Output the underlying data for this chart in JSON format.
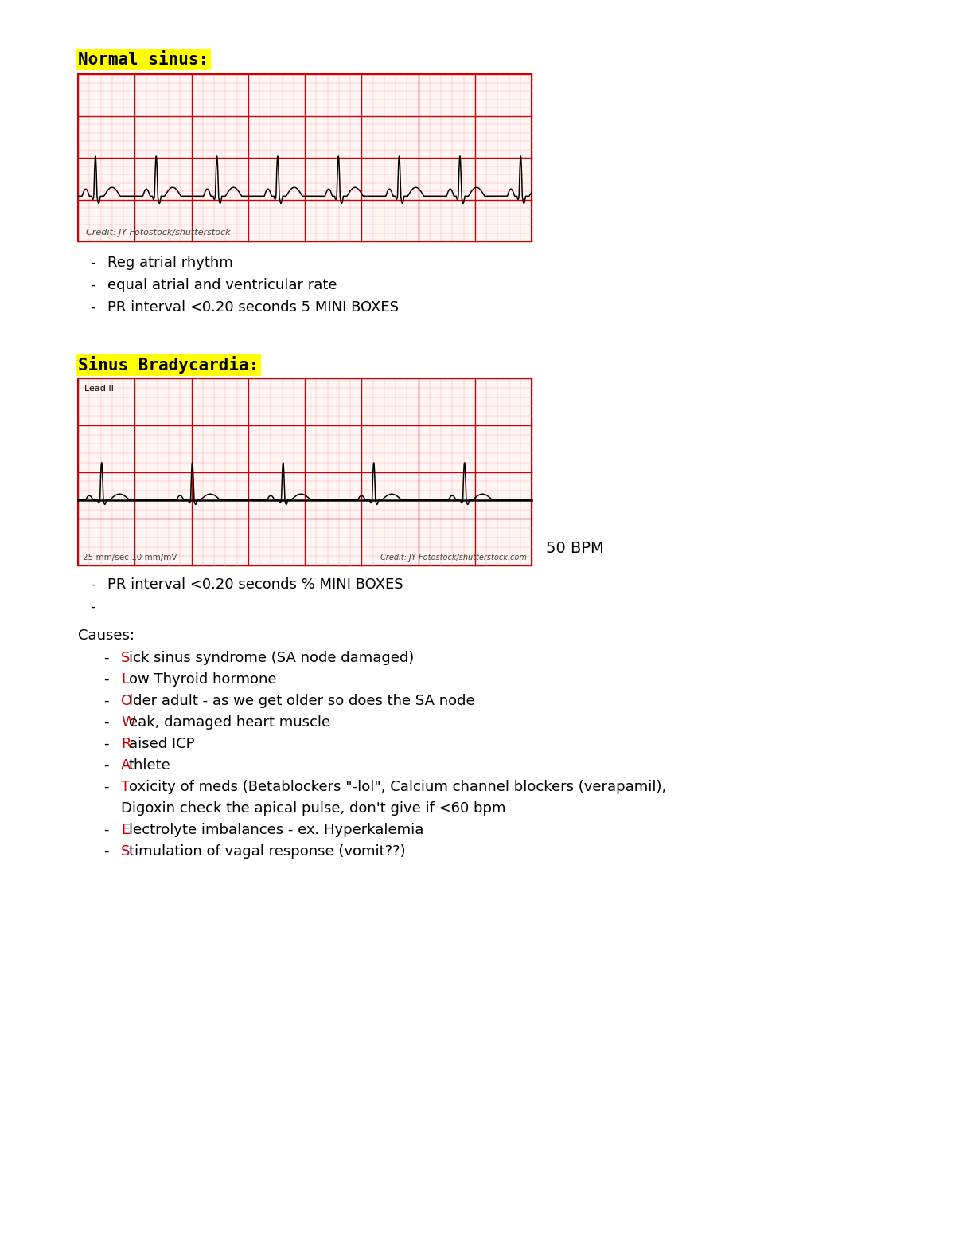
{
  "title": "Normal sinus:",
  "title2": "Sinus Bradycardia:",
  "title_bg": "#ffff00",
  "title_color": "#000000",
  "title_fontsize": 15,
  "body_fontsize": 13,
  "ecg_grid_major_color": "#cc0000",
  "ecg_grid_minor_color": "#ffaaaa",
  "ecg_line_color": "#000000",
  "ecg_bg_color": "#fff5f5",
  "normal_sinus_bullets": [
    "Reg atrial rhythm",
    "equal atrial and ventricular rate",
    "PR interval <0.20 seconds 5 MINI BOXES"
  ],
  "normal_sinus_credit": "Credit: JY Fotostock/shutterstock",
  "brady_credit": "Credit: JY Fotostock/shutterstock.com",
  "brady_speed": "25 mm/sec 10 mm/mV",
  "brady_bpm": "50 BPM",
  "brady_lead": "Lead II",
  "brady_bullets": [
    "PR interval <0.20 seconds % MINI BOXES",
    ""
  ],
  "causes_title": "Causes:",
  "causes": [
    [
      [
        "S",
        "#cc0000"
      ],
      [
        "ick sinus syndrome (SA node damaged)",
        "#000000"
      ]
    ],
    [
      [
        "L",
        "#cc0000"
      ],
      [
        "ow Thyroid hormone",
        "#000000"
      ]
    ],
    [
      [
        "O",
        "#cc0000"
      ],
      [
        "lder adult - as we get older so does the SA node",
        "#000000"
      ]
    ],
    [
      [
        "W",
        "#cc0000"
      ],
      [
        "eak, damaged heart muscle",
        "#000000"
      ]
    ],
    [
      [
        "R",
        "#cc0000"
      ],
      [
        "aised ICP",
        "#000000"
      ]
    ],
    [
      [
        "A",
        "#cc0000"
      ],
      [
        "thlete",
        "#000000"
      ]
    ],
    [
      [
        "T",
        "#cc0000"
      ],
      [
        "oxicity of meds (Betablockers \"-lol\", Calcium channel blockers (verapamil),",
        "#000000"
      ]
    ],
    [
      [
        "",
        "#000000"
      ],
      [
        "Digoxin check the apical pulse, don't give if <60 bpm",
        "#000000"
      ]
    ],
    [
      [
        "E",
        "#cc0000"
      ],
      [
        "lectrolyte imbalances - ex. Hyperkalemia",
        "#000000"
      ]
    ],
    [
      [
        "S",
        "#cc0000"
      ],
      [
        "timulation of vagal response (vomit??)",
        "#000000"
      ]
    ]
  ],
  "page_bg": "#ffffff",
  "fig_width": 12.0,
  "fig_height": 15.53
}
